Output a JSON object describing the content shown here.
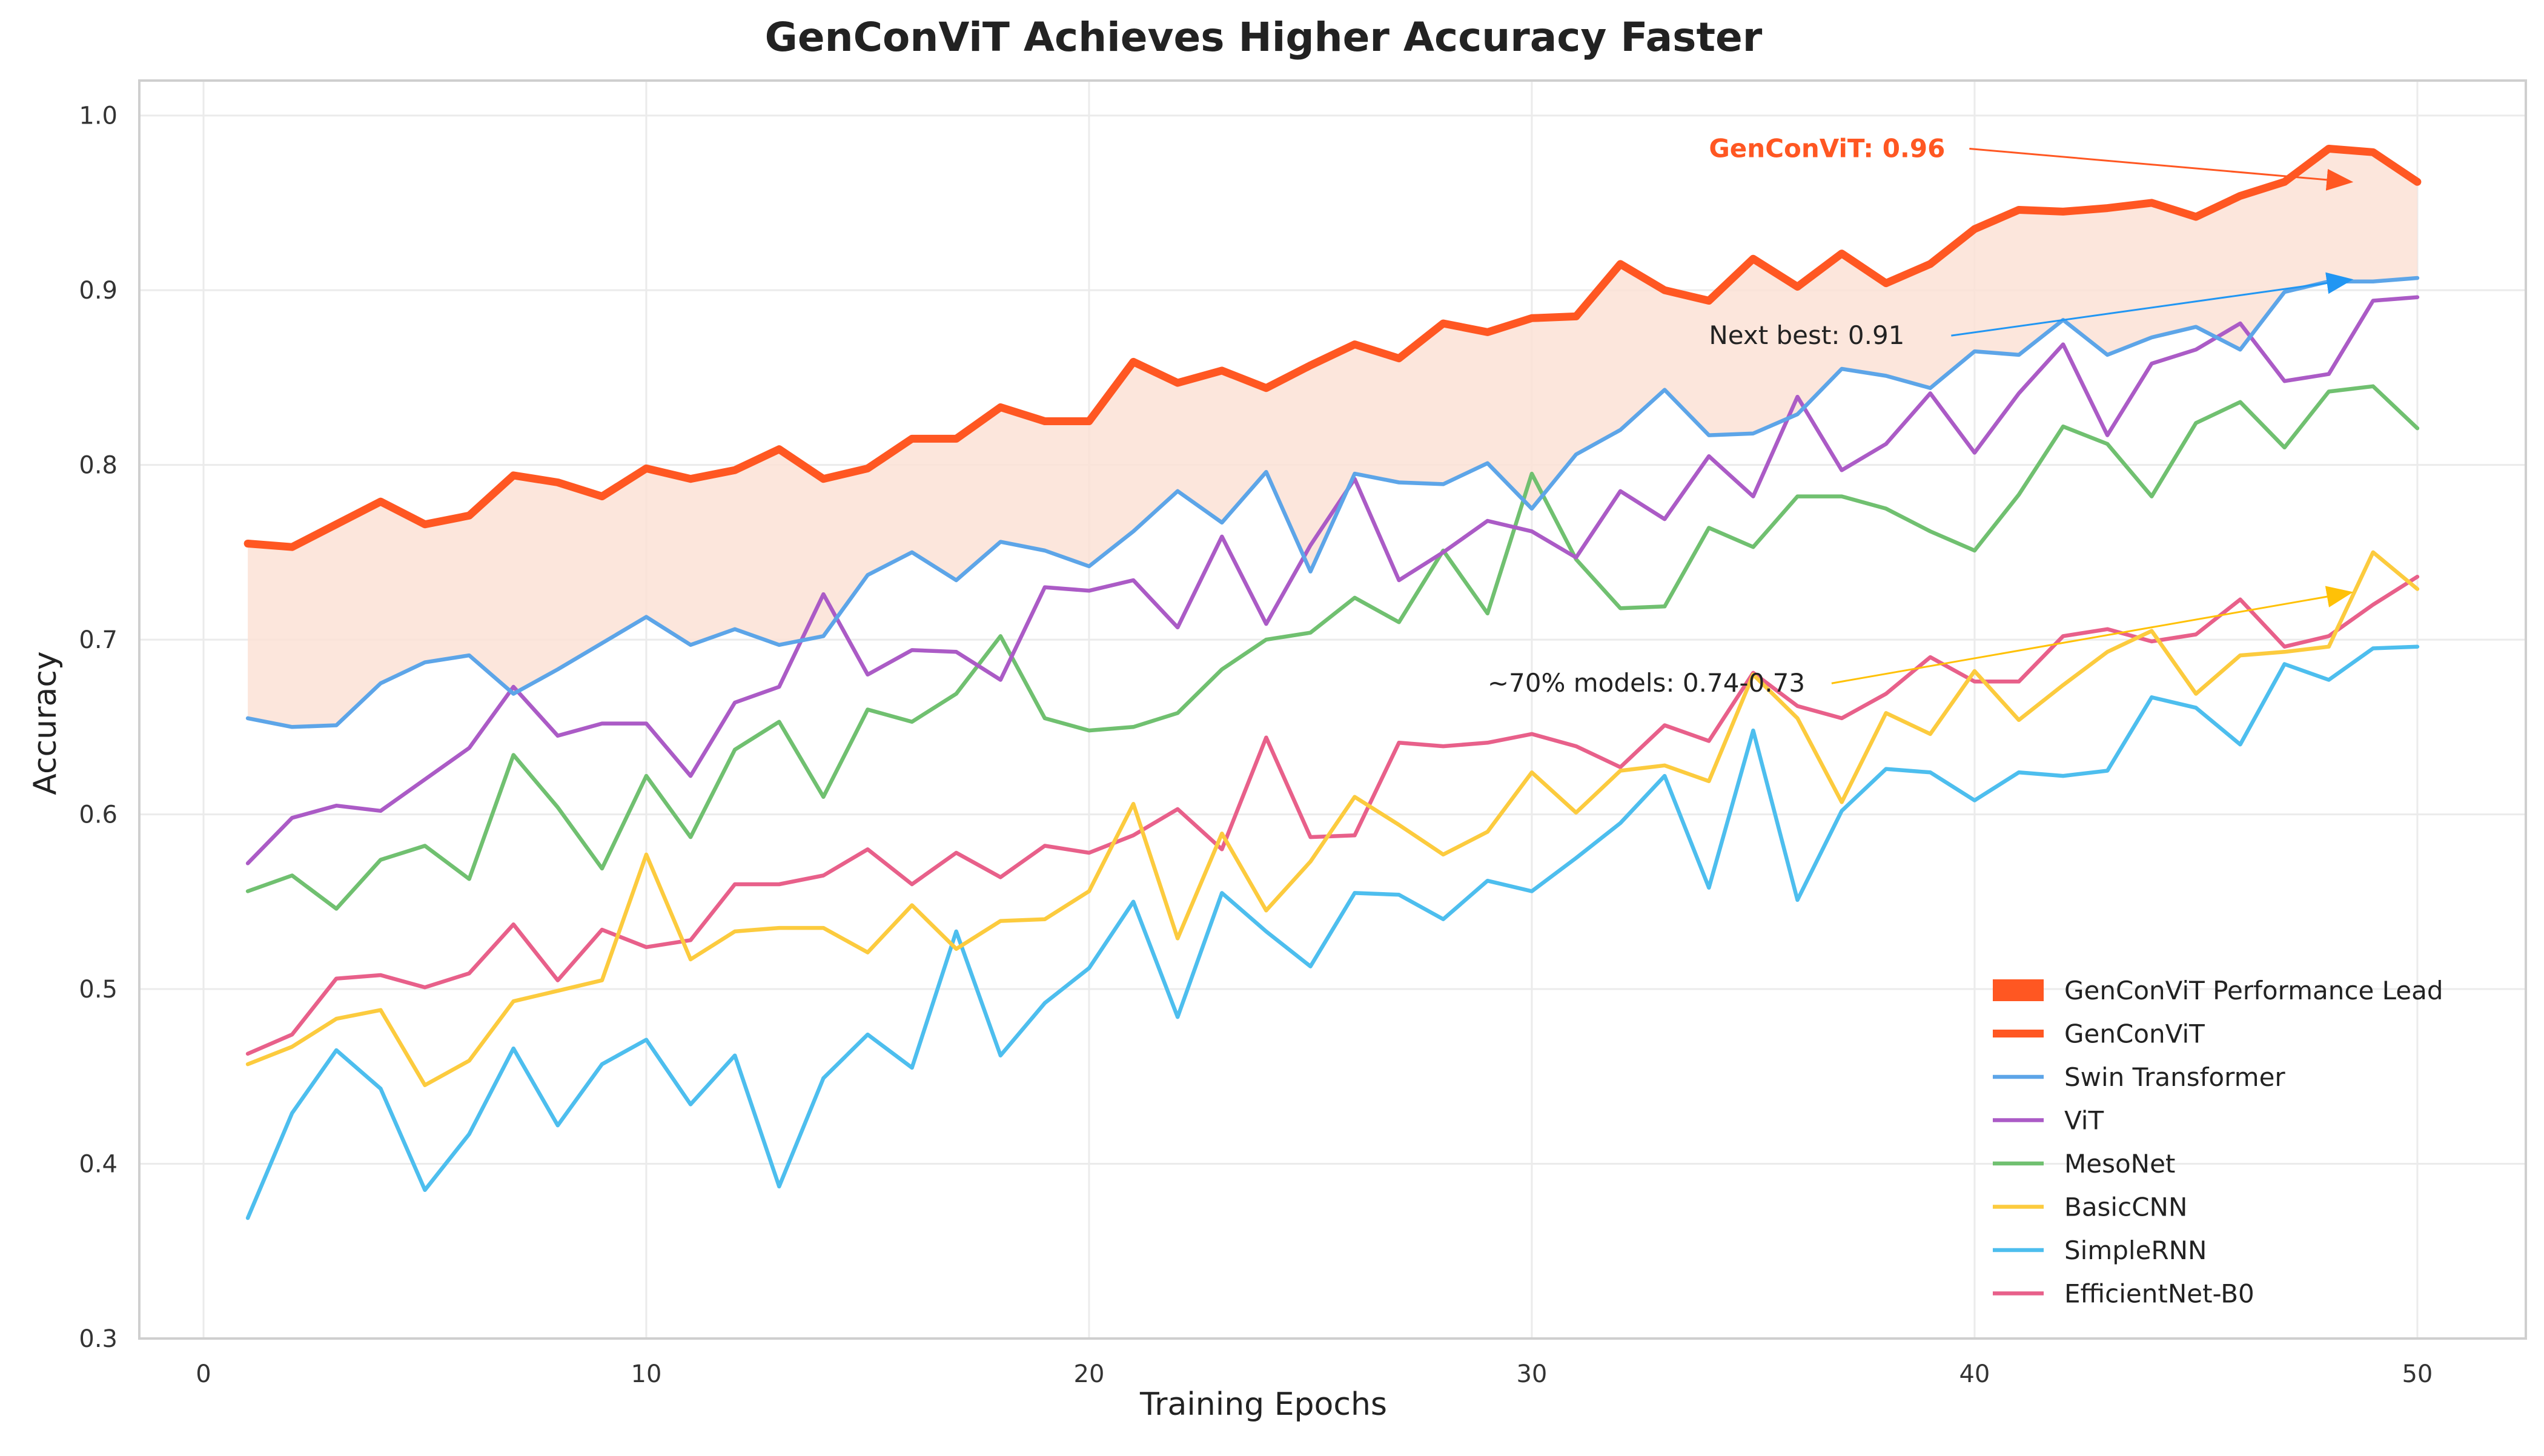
{
  "chart_data": {
    "type": "line",
    "title": "GenConViT Achieves Higher Accuracy Faster",
    "xlabel": "Training Epochs",
    "ylabel": "Accuracy",
    "xlim": [
      -1.45,
      52.45
    ],
    "ylim": [
      0.3,
      1.02
    ],
    "xticks": [
      0,
      10,
      20,
      30,
      40,
      50
    ],
    "yticks": [
      0.3,
      0.4,
      0.5,
      0.6,
      0.7,
      0.8,
      0.9,
      1.0
    ],
    "xtick_labels": [
      "0",
      "10",
      "20",
      "30",
      "40",
      "50"
    ],
    "ytick_labels": [
      "0.3",
      "0.4",
      "0.5",
      "0.6",
      "0.7",
      "0.8",
      "0.9",
      "1.0"
    ],
    "grid": true,
    "legend_position": "lower-right",
    "legend_entries": [
      "GenConViT Performance Lead",
      "GenConViT",
      "Swin Transformer",
      "ViT",
      "MesoNet",
      "BasicCNN",
      "SimpleRNN",
      "EfficientNet-B0"
    ],
    "x": [
      1,
      2,
      3,
      4,
      5,
      6,
      7,
      8,
      9,
      10,
      11,
      12,
      13,
      14,
      15,
      16,
      17,
      18,
      19,
      20,
      21,
      22,
      23,
      24,
      25,
      26,
      27,
      28,
      29,
      30,
      31,
      32,
      33,
      34,
      35,
      36,
      37,
      38,
      39,
      40,
      41,
      42,
      43,
      44,
      45,
      46,
      47,
      48,
      49,
      50
    ],
    "lead_band": {
      "label": "GenConViT Performance Lead",
      "color": "#FCE2D6",
      "legend_color": "#FF5722",
      "upper": "GenConViT",
      "lower": "Swin Transformer"
    },
    "series": [
      {
        "name": "GenConViT",
        "color": "#FF5722",
        "width": "thick",
        "values": [
          0.755,
          0.753,
          0.766,
          0.779,
          0.766,
          0.771,
          0.794,
          0.79,
          0.782,
          0.798,
          0.792,
          0.797,
          0.809,
          0.792,
          0.798,
          0.815,
          0.815,
          0.833,
          0.825,
          0.825,
          0.859,
          0.847,
          0.854,
          0.844,
          0.857,
          0.869,
          0.861,
          0.881,
          0.876,
          0.884,
          0.885,
          0.915,
          0.9,
          0.894,
          0.918,
          0.902,
          0.921,
          0.904,
          0.915,
          0.935,
          0.946,
          0.945,
          0.947,
          0.95,
          0.942,
          0.954,
          0.962,
          0.981,
          0.979,
          0.962
        ]
      },
      {
        "name": "Swin Transformer",
        "color": "#5DA5E8",
        "width": "normal",
        "values": [
          0.655,
          0.65,
          0.651,
          0.675,
          0.687,
          0.691,
          0.669,
          0.683,
          0.698,
          0.713,
          0.697,
          0.706,
          0.697,
          0.702,
          0.737,
          0.75,
          0.734,
          0.756,
          0.751,
          0.742,
          0.762,
          0.785,
          0.767,
          0.796,
          0.739,
          0.795,
          0.79,
          0.789,
          0.801,
          0.775,
          0.806,
          0.82,
          0.843,
          0.817,
          0.818,
          0.829,
          0.855,
          0.851,
          0.844,
          0.865,
          0.863,
          0.883,
          0.863,
          0.873,
          0.879,
          0.866,
          0.899,
          0.905,
          0.905,
          0.907
        ]
      },
      {
        "name": "ViT",
        "color": "#AB5BC6",
        "width": "normal",
        "values": [
          0.572,
          0.598,
          0.605,
          0.602,
          0.62,
          0.638,
          0.673,
          0.645,
          0.652,
          0.652,
          0.622,
          0.664,
          0.673,
          0.726,
          0.68,
          0.694,
          0.693,
          0.677,
          0.73,
          0.728,
          0.734,
          0.707,
          0.759,
          0.709,
          0.754,
          0.792,
          0.734,
          0.75,
          0.768,
          0.762,
          0.747,
          0.785,
          0.769,
          0.805,
          0.782,
          0.839,
          0.797,
          0.812,
          0.841,
          0.807,
          0.841,
          0.869,
          0.817,
          0.858,
          0.866,
          0.881,
          0.848,
          0.852,
          0.894,
          0.896
        ]
      },
      {
        "name": "MesoNet",
        "color": "#70C070",
        "width": "normal",
        "values": [
          0.556,
          0.565,
          0.546,
          0.574,
          0.582,
          0.563,
          0.634,
          0.604,
          0.569,
          0.622,
          0.587,
          0.637,
          0.653,
          0.61,
          0.66,
          0.653,
          0.669,
          0.702,
          0.655,
          0.648,
          0.65,
          0.658,
          0.683,
          0.7,
          0.704,
          0.724,
          0.71,
          0.751,
          0.715,
          0.795,
          0.746,
          0.718,
          0.719,
          0.764,
          0.753,
          0.782,
          0.782,
          0.775,
          0.762,
          0.751,
          0.783,
          0.822,
          0.812,
          0.782,
          0.824,
          0.836,
          0.81,
          0.842,
          0.845,
          0.821
        ]
      },
      {
        "name": "BasicCNN",
        "color": "#FCCB3E",
        "width": "normal",
        "values": [
          0.457,
          0.467,
          0.483,
          0.488,
          0.445,
          0.459,
          0.493,
          0.499,
          0.505,
          0.577,
          0.517,
          0.533,
          0.535,
          0.535,
          0.521,
          0.548,
          0.523,
          0.539,
          0.54,
          0.556,
          0.606,
          0.529,
          0.589,
          0.545,
          0.573,
          0.61,
          0.594,
          0.577,
          0.59,
          0.624,
          0.601,
          0.625,
          0.628,
          0.619,
          0.68,
          0.655,
          0.607,
          0.658,
          0.646,
          0.682,
          0.654,
          0.674,
          0.693,
          0.705,
          0.669,
          0.691,
          0.693,
          0.696,
          0.75,
          0.729
        ]
      },
      {
        "name": "SimpleRNN",
        "color": "#4DBEEE",
        "width": "normal",
        "values": [
          0.369,
          0.429,
          0.465,
          0.443,
          0.385,
          0.417,
          0.466,
          0.422,
          0.457,
          0.471,
          0.434,
          0.462,
          0.387,
          0.449,
          0.474,
          0.455,
          0.533,
          0.462,
          0.492,
          0.512,
          0.55,
          0.484,
          0.555,
          0.533,
          0.513,
          0.555,
          0.554,
          0.54,
          0.562,
          0.556,
          0.575,
          0.595,
          0.622,
          0.558,
          0.648,
          0.551,
          0.602,
          0.626,
          0.624,
          0.608,
          0.624,
          0.622,
          0.625,
          0.667,
          0.661,
          0.64,
          0.686,
          0.677,
          0.695,
          0.696
        ]
      },
      {
        "name": "EfficientNet-B0",
        "color": "#E8608A",
        "width": "normal",
        "values": [
          0.463,
          0.474,
          0.506,
          0.508,
          0.501,
          0.509,
          0.537,
          0.505,
          0.534,
          0.524,
          0.528,
          0.56,
          0.56,
          0.565,
          0.58,
          0.56,
          0.578,
          0.564,
          0.582,
          0.578,
          0.588,
          0.603,
          0.58,
          0.644,
          0.587,
          0.588,
          0.641,
          0.639,
          0.641,
          0.646,
          0.639,
          0.627,
          0.651,
          0.642,
          0.681,
          0.662,
          0.655,
          0.669,
          0.69,
          0.676,
          0.676,
          0.702,
          0.706,
          0.699,
          0.703,
          0.723,
          0.696,
          0.702,
          0.72,
          0.736
        ]
      }
    ],
    "annotations": [
      {
        "text": "GenConViT: 0.96",
        "color": "#FF5722",
        "bold": true,
        "text_x": 34,
        "text_y": 0.981,
        "arrow_to_x": 48.5,
        "arrow_to_y": 0.962
      },
      {
        "text": "Next best: 0.91",
        "color": "#2196F3",
        "bold": false,
        "text_x": 34,
        "text_y": 0.874,
        "arrow_to_x": 48.5,
        "arrow_to_y": 0.906
      },
      {
        "text": "~70% models: 0.74-0.73",
        "color": "#FFC107",
        "bold": false,
        "text_x": 29,
        "text_y": 0.675,
        "arrow_to_x": 48.5,
        "arrow_to_y": 0.727
      }
    ]
  }
}
